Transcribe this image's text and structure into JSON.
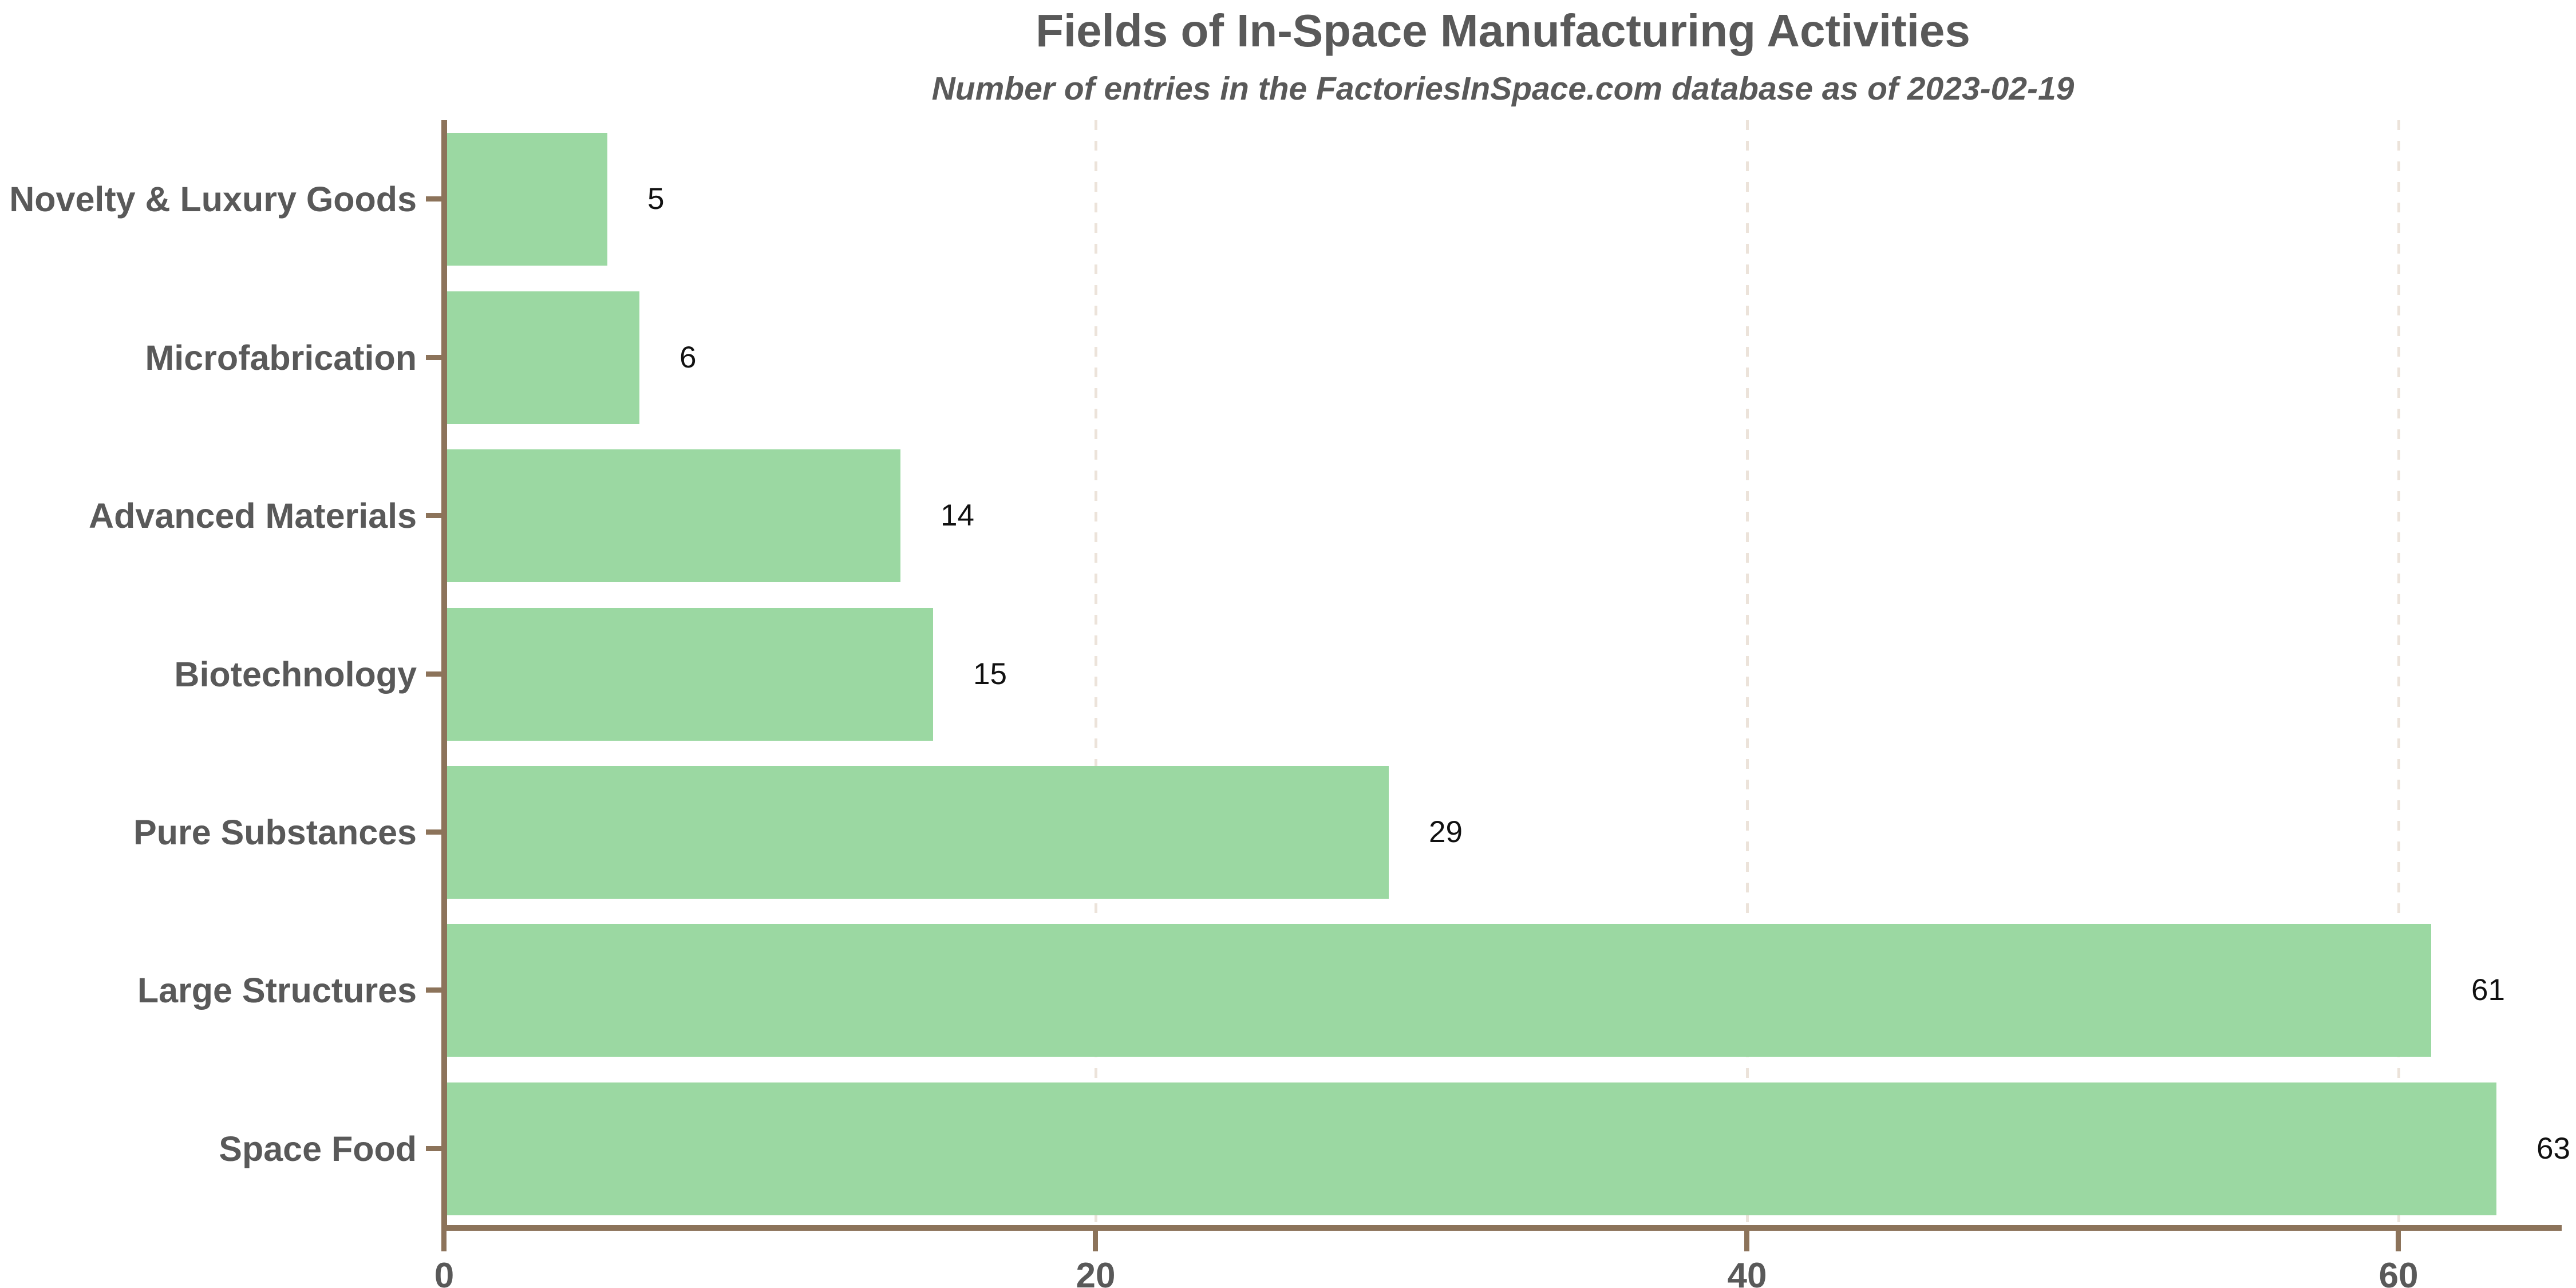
{
  "chart_data": {
    "type": "bar",
    "orientation": "horizontal",
    "title": "Fields of In-Space Manufacturing Activities",
    "subtitle": "Number of entries in the FactoriesInSpace.com database as of 2023-02-19",
    "categories": [
      "Novelty & Luxury Goods",
      "Microfabrication",
      "Advanced Materials",
      "Biotechnology",
      "Pure Substances",
      "Large Structures",
      "Space Food"
    ],
    "values": [
      5,
      6,
      14,
      15,
      29,
      61,
      63
    ],
    "value_labels": [
      "5",
      "6",
      "14",
      "15",
      "29",
      "61",
      "63"
    ],
    "x_ticks": [
      "0",
      "20",
      "40",
      "60"
    ],
    "x_tick_values": [
      0,
      20,
      40,
      60
    ],
    "xlim": [
      0,
      65
    ],
    "grid": "vertical dashed gridlines at 20, 40, 60 behind bars",
    "colors": {
      "bar": "#9bd8a2",
      "axis": "#8c735a",
      "grid": "#ece3da",
      "heading_text": "#595959",
      "value_text": "#111111"
    }
  }
}
